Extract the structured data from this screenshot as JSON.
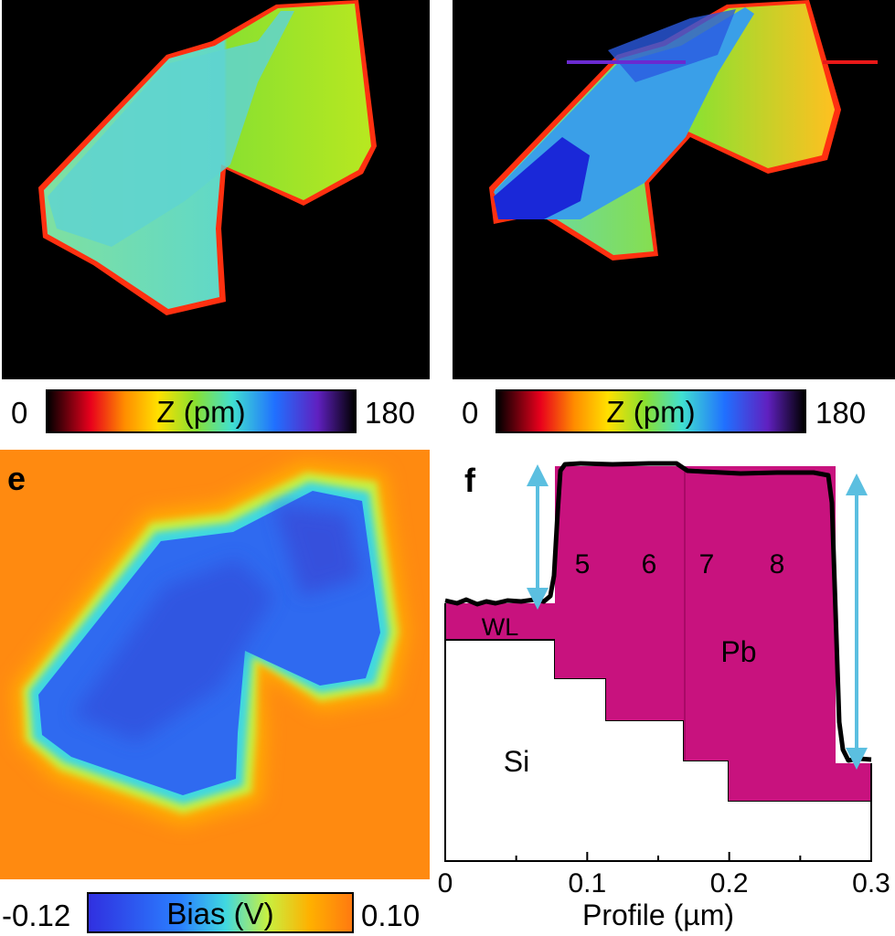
{
  "panel_top_left": {
    "colorbar": {
      "min_label": "0",
      "title": "Z (pm)",
      "max_label": "180"
    }
  },
  "panel_top_right": {
    "colorbar": {
      "min_label": "0",
      "title": "Z (pm)",
      "max_label": "180"
    }
  },
  "panel_e": {
    "letter": "e",
    "colorbar": {
      "min_label": "-0.12",
      "title": "Bias (V)",
      "max_label": "0.10"
    }
  },
  "panel_f": {
    "letter": "f",
    "layer_labels": [
      "5",
      "6",
      "7",
      "8"
    ],
    "region_labels": {
      "wl": "WL",
      "pb": "Pb",
      "si": "Si"
    },
    "xlabel": "Profile (µm)",
    "xticks": [
      "0",
      "0.1",
      "0.2",
      "0.3"
    ]
  },
  "colors": {
    "height_scale": [
      "#000000",
      "#e8001c",
      "#ffd200",
      "#78e020",
      "#40e0d0",
      "#2060ff",
      "#7020c0",
      "#000000"
    ],
    "bias_scale": [
      "#3040e0",
      "#2a80ff",
      "#40d8e0",
      "#c8f040",
      "#ffb000",
      "#ff7a10"
    ],
    "pb_fill": "#c8127e",
    "arrow": "#5bbfe0",
    "profile_line": "#000000"
  },
  "chart_data": {
    "type": "line",
    "title": "",
    "xlabel": "Profile (µm)",
    "ylabel": "",
    "xlim": [
      0,
      0.3
    ],
    "x": [
      0,
      0.02,
      0.04,
      0.06,
      0.07,
      0.075,
      0.08,
      0.09,
      0.1,
      0.15,
      0.17,
      0.2,
      0.25,
      0.27,
      0.275,
      0.28,
      0.3
    ],
    "y": [
      0.3,
      0.29,
      0.3,
      0.3,
      0.31,
      0.4,
      0.97,
      1.0,
      1.0,
      1.0,
      0.98,
      0.97,
      0.97,
      0.96,
      0.5,
      0.0,
      0.0
    ],
    "series": [
      {
        "values": [
          0.3,
          0.29,
          0.3,
          0.3,
          0.31,
          0.4,
          0.97,
          1.0,
          1.0,
          1.0,
          0.98,
          0.97,
          0.97,
          0.96,
          0.5,
          0.0,
          0.0
        ]
      }
    ]
  }
}
